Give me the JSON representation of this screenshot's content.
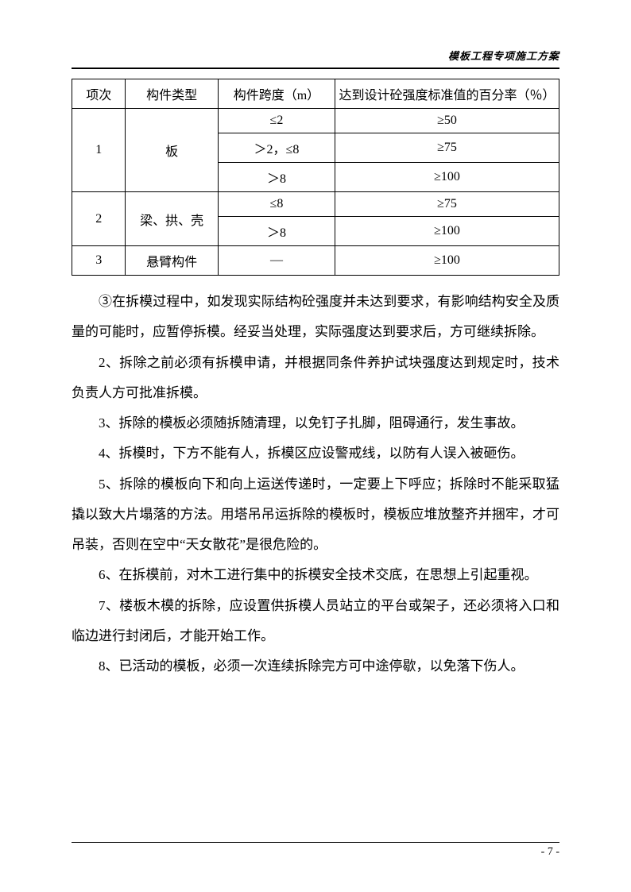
{
  "header": {
    "title": "模板工程专项施工方案"
  },
  "table": {
    "columns": [
      "项次",
      "构件类型",
      "构件跨度（m）",
      "达到设计砼强度标准值的百分率（％）"
    ],
    "rows": [
      {
        "seq": "1",
        "type": "板",
        "spans": [
          {
            "span": "≤2",
            "pct": "≥50"
          },
          {
            "span": "＞2，≤8",
            "pct": "≥75"
          },
          {
            "span": "＞8",
            "pct": "≥100"
          }
        ]
      },
      {
        "seq": "2",
        "type": "梁、拱、壳",
        "spans": [
          {
            "span": "≤8",
            "pct": "≥75"
          },
          {
            "span": "＞8",
            "pct": "≥100"
          }
        ]
      },
      {
        "seq": "3",
        "type": "悬臂构件",
        "spans": [
          {
            "span": "—",
            "pct": "≥100"
          }
        ]
      }
    ]
  },
  "paragraphs": [
    "③在拆模过程中，如发现实际结构砼强度并未达到要求，有影响结构安全及质量的可能时，应暂停拆模。经妥当处理，实际强度达到要求后，方可继续拆除。",
    "2、拆除之前必须有拆模申请，并根据同条件养护试块强度达到规定时，技术负责人方可批准拆模。",
    "3、拆除的模板必须随拆随清理，以免钉子扎脚，阻碍通行，发生事故。",
    "4、拆模时，下方不能有人，拆模区应设警戒线，以防有人误入被砸伤。",
    "5、拆除的模板向下和向上运送传递时，一定要上下呼应；拆除时不能采取猛撬以致大片塌落的方法。用塔吊吊运拆除的模板时，模板应堆放整齐并捆牢，才可吊装，否则在空中“天女散花”是很危险的。",
    "6、在拆模前，对木工进行集中的拆模安全技术交底，在思想上引起重视。",
    "7、楼板木模的拆除，应设置供拆模人员站立的平台或架子，还必须将入口和临边进行封闭后，才能开始工作。",
    "8、已活动的模板，必须一次连续拆除完方可中途停歇，以免落下伤人。"
  ],
  "footer": {
    "page": "- 7 -"
  }
}
